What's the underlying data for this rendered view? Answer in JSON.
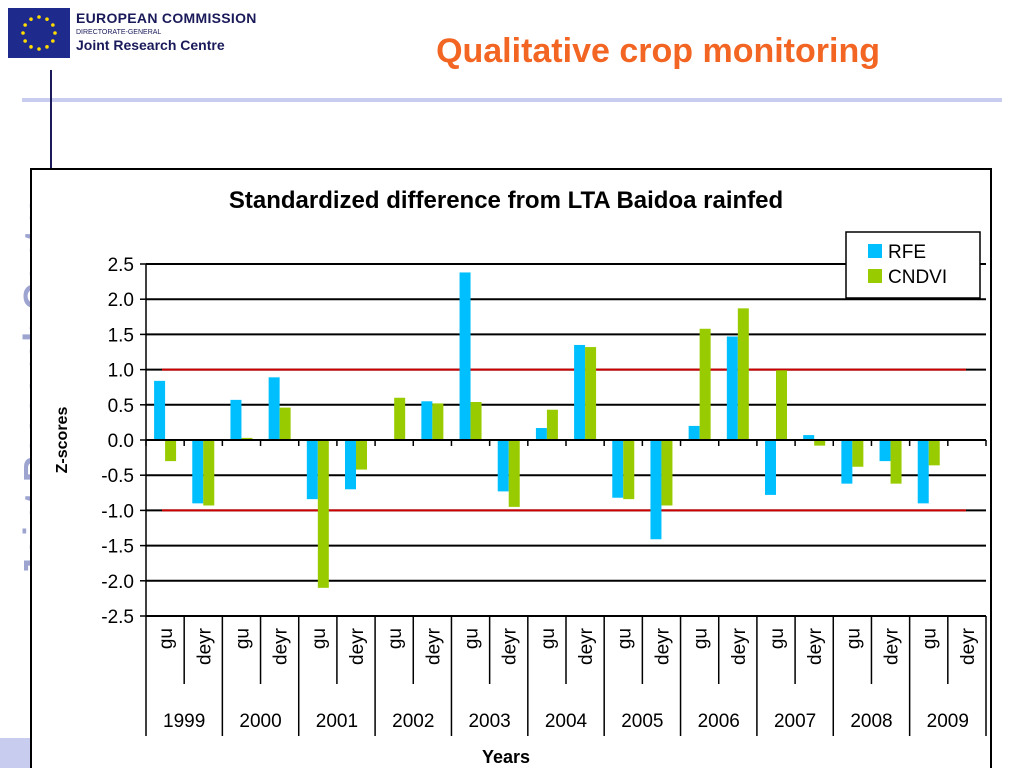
{
  "header": {
    "org_line1": "EUROPEAN COMMISSION",
    "org_line2": "DIRECTORATE-GENERAL",
    "org_line3": "Joint Research Centre",
    "watermark": "Joint Research Centre",
    "slide_title": "Qualitative crop monitoring"
  },
  "colors": {
    "title": "#f26522",
    "rfe": "#00bfff",
    "cndvi": "#99cc00",
    "threshold": "#cc0000",
    "brand": "#1a1a5a"
  },
  "icons": {
    "logo": "eu-flag-icon"
  },
  "chart_data": {
    "type": "bar",
    "title": "Standardized difference from LTA Baidoa rainfed",
    "xlabel": "Years",
    "ylabel": "Z-scores",
    "ylim": [
      -2.5,
      2.5
    ],
    "yticks": [
      "2.5",
      "2.0",
      "1.5",
      "1.0",
      "0.5",
      "0.0",
      "-0.5",
      "-1.0",
      "-1.5",
      "-2.0",
      "-2.5"
    ],
    "grid": true,
    "legend_position": "top-right",
    "threshold_lines": [
      1.0,
      -1.0
    ],
    "seasons": [
      "gu",
      "deyr",
      "gu",
      "deyr",
      "gu",
      "deyr",
      "gu",
      "deyr",
      "gu",
      "deyr",
      "gu",
      "deyr",
      "gu",
      "deyr",
      "gu",
      "deyr",
      "gu",
      "deyr",
      "gu",
      "deyr",
      "gu",
      "deyr"
    ],
    "years": [
      "1999",
      "2000",
      "2001",
      "2002",
      "2003",
      "2004",
      "2005",
      "2006",
      "2007",
      "2008",
      "2009"
    ],
    "series": [
      {
        "name": "RFE",
        "color": "#00bfff",
        "values": [
          0.84,
          -0.9,
          0.57,
          0.89,
          -0.84,
          -0.7,
          0.0,
          0.55,
          2.38,
          -0.73,
          0.17,
          1.35,
          -0.82,
          -1.41,
          0.2,
          1.47,
          -0.78,
          0.07,
          -0.62,
          -0.3,
          -0.9,
          0.0
        ]
      },
      {
        "name": "CNDVI",
        "color": "#99cc00",
        "values": [
          -0.3,
          -0.93,
          0.03,
          0.46,
          -2.1,
          -0.42,
          0.6,
          0.52,
          0.54,
          -0.95,
          0.43,
          1.32,
          -0.84,
          -0.93,
          1.58,
          1.87,
          0.99,
          -0.08,
          -0.38,
          -0.62,
          -0.36,
          0.0
        ]
      }
    ]
  }
}
